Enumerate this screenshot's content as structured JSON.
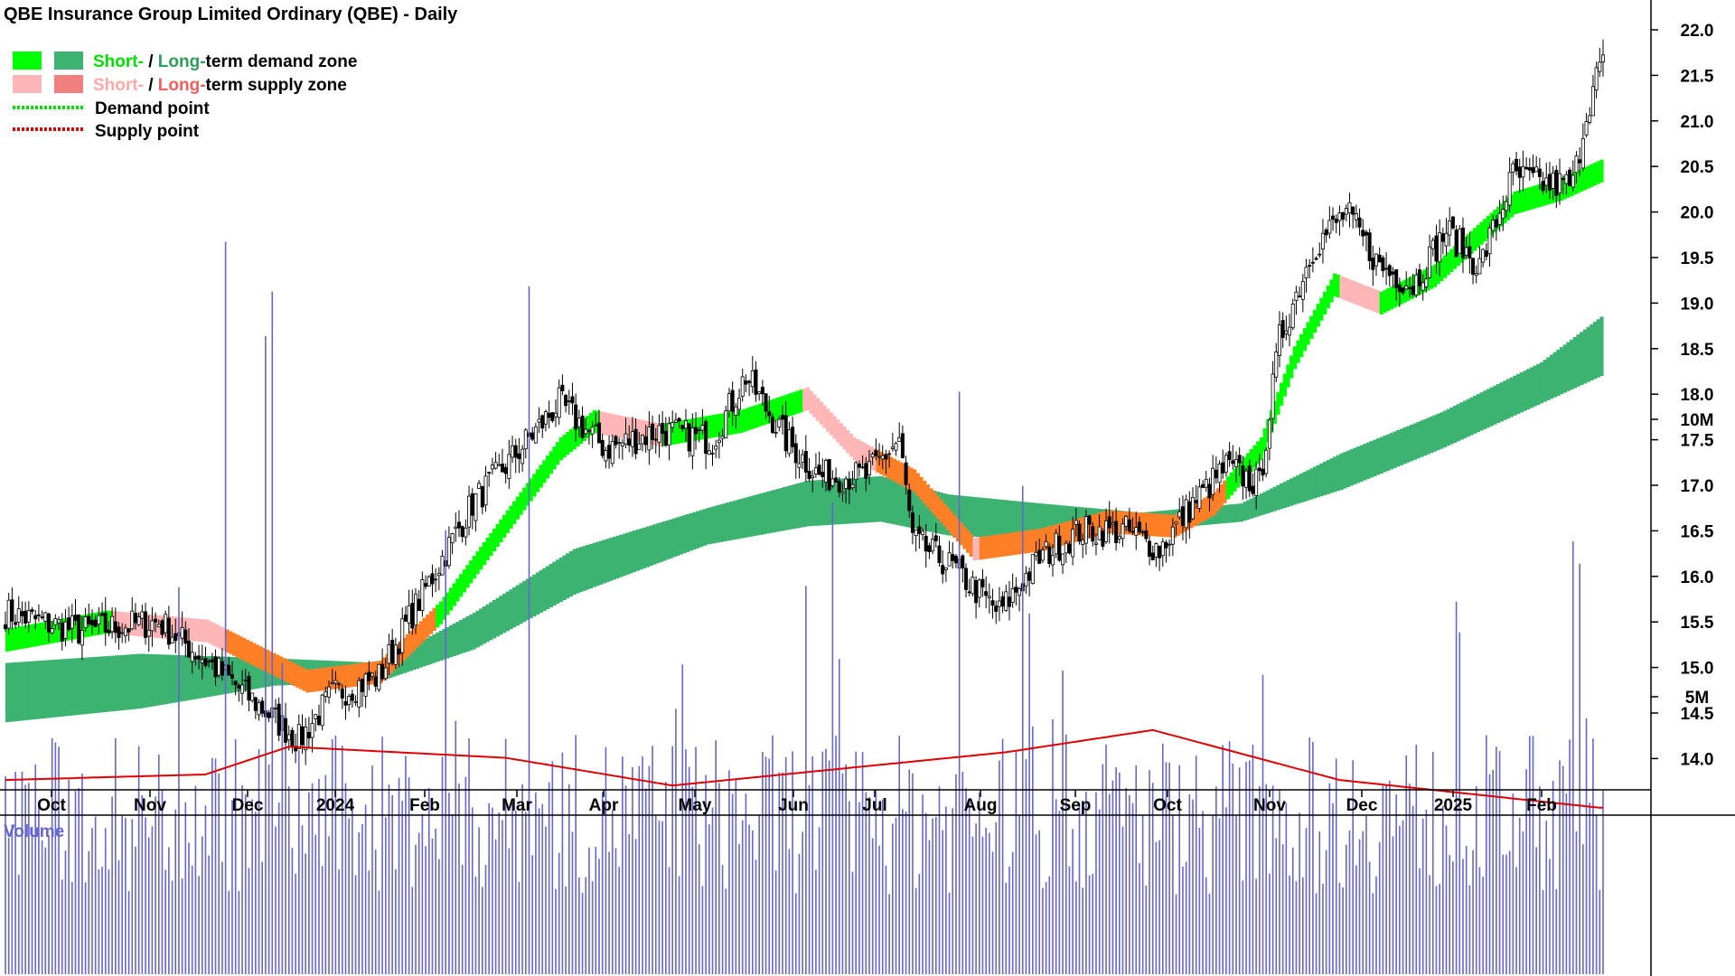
{
  "title": "QBE Insurance Group Limited Ordinary (QBE) - Daily",
  "legend": {
    "demand_zone": {
      "short": "Short-",
      "sep": " / ",
      "long": "Long-",
      "rest": "term demand zone"
    },
    "supply_zone": {
      "short": "Short-",
      "sep": " / ",
      "long": "Long-",
      "rest": "term supply zone"
    },
    "demand_point": "Demand point",
    "supply_point": "Supply point"
  },
  "colors": {
    "short_demand": "#00ff00",
    "long_demand": "#3cb371",
    "short_supply": "#ffb6b6",
    "long_supply": "#f08080",
    "zone_overlap": "#ff7f27",
    "demand_point": "#00dd00",
    "supply_point": "#dd0000",
    "volume_bar": "#6666cc",
    "volume_ma": "#dd0000",
    "volume_label": "#6666cc"
  },
  "volume_label": "Volume",
  "chart_data": {
    "type": "candlestick",
    "title": "QBE Insurance Group Limited Ordinary (QBE) - Daily",
    "x_ticks": [
      "Oct",
      "Nov",
      "Dec",
      "2024",
      "Feb",
      "Mar",
      "Apr",
      "May",
      "Jun",
      "Jul",
      "Aug",
      "Sep",
      "Oct",
      "Nov",
      "Dec",
      "2025",
      "Feb"
    ],
    "y_ticks": [
      "22.0",
      "21.5",
      "21.0",
      "20.5",
      "20.0",
      "19.5",
      "19.0",
      "18.5",
      "18.0",
      "17.5",
      "17.0",
      "16.5",
      "16.0",
      "15.5",
      "15.0",
      "14.5",
      "14.0"
    ],
    "ylim": [
      13.6,
      22.3
    ],
    "price_path": [
      [
        0,
        15.6
      ],
      [
        22,
        15.4
      ],
      [
        46,
        15.5
      ],
      [
        66,
        14.9
      ],
      [
        88,
        14.2
      ],
      [
        98,
        14.7
      ],
      [
        112,
        14.9
      ],
      [
        122,
        15.6
      ],
      [
        140,
        16.8
      ],
      [
        152,
        17.3
      ],
      [
        166,
        17.9
      ],
      [
        180,
        17.4
      ],
      [
        196,
        17.6
      ],
      [
        212,
        17.5
      ],
      [
        222,
        18.2
      ],
      [
        234,
        17.5
      ],
      [
        244,
        17.1
      ],
      [
        258,
        17.1
      ],
      [
        268,
        17.5
      ],
      [
        272,
        16.4
      ],
      [
        284,
        16.1
      ],
      [
        298,
        15.6
      ],
      [
        310,
        16.2
      ],
      [
        322,
        16.5
      ],
      [
        336,
        16.5
      ],
      [
        346,
        16.3
      ],
      [
        356,
        16.8
      ],
      [
        366,
        17.2
      ],
      [
        376,
        17.0
      ],
      [
        382,
        18.6
      ],
      [
        392,
        19.6
      ],
      [
        402,
        20.0
      ],
      [
        412,
        19.4
      ],
      [
        422,
        19.2
      ],
      [
        432,
        19.8
      ],
      [
        442,
        19.4
      ],
      [
        452,
        20.4
      ],
      [
        462,
        20.3
      ],
      [
        470,
        20.3
      ],
      [
        474,
        21.1
      ],
      [
        478,
        21.6
      ]
    ],
    "short_zone_mid": [
      [
        0,
        15.3
      ],
      [
        30,
        15.5
      ],
      [
        60,
        15.4
      ],
      [
        90,
        14.85
      ],
      [
        112,
        14.95
      ],
      [
        130,
        15.6
      ],
      [
        150,
        16.6
      ],
      [
        166,
        17.4
      ],
      [
        176,
        17.7
      ],
      [
        196,
        17.55
      ],
      [
        220,
        17.7
      ],
      [
        240,
        17.95
      ],
      [
        254,
        17.4
      ],
      [
        272,
        17.05
      ],
      [
        290,
        16.3
      ],
      [
        310,
        16.4
      ],
      [
        330,
        16.6
      ],
      [
        350,
        16.55
      ],
      [
        362,
        16.8
      ],
      [
        376,
        17.4
      ],
      [
        386,
        18.4
      ],
      [
        398,
        19.2
      ],
      [
        412,
        19.0
      ],
      [
        428,
        19.3
      ],
      [
        440,
        19.7
      ],
      [
        452,
        20.1
      ],
      [
        466,
        20.25
      ],
      [
        478,
        20.45
      ]
    ],
    "short_zone_width": 0.25,
    "long_zone_upper": [
      [
        0,
        15.05
      ],
      [
        40,
        15.15
      ],
      [
        80,
        15.1
      ],
      [
        112,
        15.05
      ],
      [
        140,
        15.6
      ],
      [
        170,
        16.3
      ],
      [
        210,
        16.75
      ],
      [
        240,
        17.05
      ],
      [
        262,
        17.1
      ],
      [
        282,
        16.9
      ],
      [
        310,
        16.8
      ],
      [
        340,
        16.7
      ],
      [
        370,
        16.8
      ],
      [
        400,
        17.35
      ],
      [
        430,
        17.8
      ],
      [
        460,
        18.35
      ],
      [
        478,
        18.85
      ]
    ],
    "long_zone_lower": [
      [
        0,
        14.4
      ],
      [
        40,
        14.55
      ],
      [
        80,
        14.8
      ],
      [
        112,
        14.85
      ],
      [
        140,
        15.2
      ],
      [
        170,
        15.8
      ],
      [
        210,
        16.35
      ],
      [
        240,
        16.55
      ],
      [
        262,
        16.6
      ],
      [
        282,
        16.45
      ],
      [
        310,
        16.4
      ],
      [
        340,
        16.5
      ],
      [
        370,
        16.6
      ],
      [
        400,
        16.95
      ],
      [
        430,
        17.4
      ],
      [
        460,
        17.9
      ],
      [
        478,
        18.2
      ]
    ],
    "volume": {
      "label": "Volume",
      "y_ticks": [
        "10M",
        "5M"
      ],
      "ylim": [
        0,
        14
      ],
      "typical": 3.2,
      "spikes": [
        [
          66,
          13.2
        ],
        [
          78,
          11.5
        ],
        [
          80,
          12.3
        ],
        [
          157,
          12.4
        ],
        [
          132,
          8.0
        ],
        [
          248,
          8.5
        ],
        [
          286,
          10.5
        ],
        [
          240,
          7.0
        ],
        [
          305,
          8.8
        ],
        [
          307,
          6.5
        ],
        [
          470,
          7.8
        ],
        [
          472,
          7.4
        ]
      ],
      "moving_average": [
        [
          0,
          3.5
        ],
        [
          60,
          3.6
        ],
        [
          85,
          4.1
        ],
        [
          150,
          3.9
        ],
        [
          200,
          3.4
        ],
        [
          300,
          4.0
        ],
        [
          344,
          4.4
        ],
        [
          400,
          3.5
        ],
        [
          478,
          3.0
        ]
      ]
    }
  }
}
